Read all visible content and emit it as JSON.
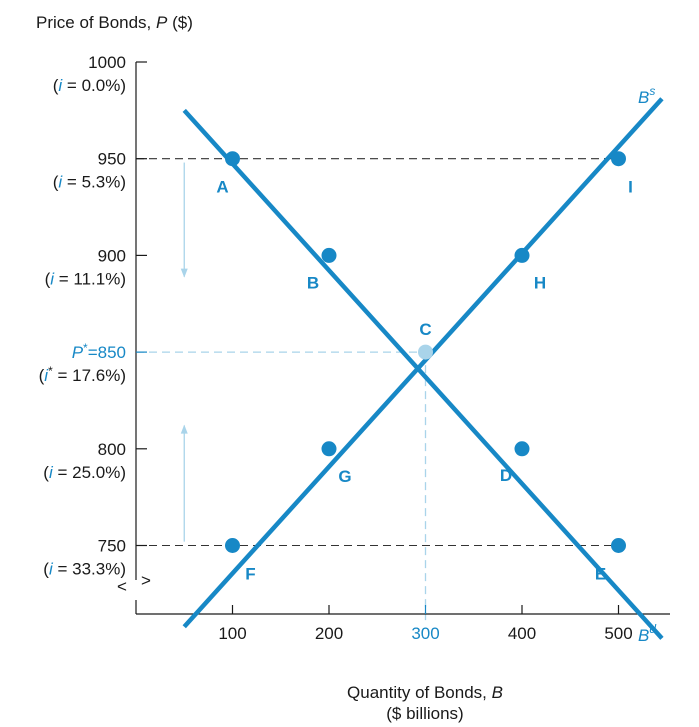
{
  "chart_data": {
    "type": "line",
    "ylabel": "Price of Bonds, P ($)",
    "xlabel_line1": "Quantity of Bonds, B",
    "xlabel_line2": "($ billions)",
    "xlim": [
      0,
      550
    ],
    "ylim": [
      700,
      1000
    ],
    "x_ticks": [
      {
        "label": "100",
        "value": 100,
        "highlight": false
      },
      {
        "label": "200",
        "value": 200,
        "highlight": false
      },
      {
        "label": "300",
        "value": 300,
        "highlight": true
      },
      {
        "label": "400",
        "value": 400,
        "highlight": false
      },
      {
        "label": "500",
        "value": 500,
        "highlight": false
      }
    ],
    "y_ticks": [
      {
        "value": 1000,
        "price": "1000",
        "rate_var": "i",
        "rate_val": " = 0.0%)",
        "highlight": false
      },
      {
        "value": 950,
        "price": "950",
        "rate_var": "i",
        "rate_val": " = 5.3%)",
        "highlight": false
      },
      {
        "value": 900,
        "price": "900",
        "rate_var": "i",
        "rate_val": " = 11.1%)",
        "highlight": false
      },
      {
        "value": 850,
        "price": "P*=850",
        "rate_var": "i*",
        "rate_val": " = 17.6%)",
        "highlight": true
      },
      {
        "value": 800,
        "price": "800",
        "rate_var": "i",
        "rate_val": " = 25.0%)",
        "highlight": false
      },
      {
        "value": 750,
        "price": "750",
        "rate_var": "i",
        "rate_val": " = 33.3%)",
        "highlight": false
      }
    ],
    "series": [
      {
        "name": "B^d",
        "label_main": "B",
        "label_sup": "d",
        "line_from": [
          50,
          975
        ],
        "line_to": [
          545,
          702
        ],
        "points": [
          {
            "label": "A",
            "x": 100,
            "y": 950
          },
          {
            "label": "B",
            "x": 200,
            "y": 900
          },
          {
            "label": "C",
            "x": 300,
            "y": 850
          },
          {
            "label": "D",
            "x": 400,
            "y": 800
          },
          {
            "label": "E",
            "x": 500,
            "y": 750
          }
        ]
      },
      {
        "name": "B^s",
        "label_main": "B",
        "label_sup": "s",
        "line_from": [
          50,
          708
        ],
        "line_to": [
          545,
          981
        ],
        "points": [
          {
            "label": "F",
            "x": 100,
            "y": 750
          },
          {
            "label": "G",
            "x": 200,
            "y": 800
          },
          {
            "label": "C",
            "x": 300,
            "y": 850
          },
          {
            "label": "H",
            "x": 400,
            "y": 900
          },
          {
            "label": "I",
            "x": 500,
            "y": 950
          }
        ]
      }
    ],
    "equilibrium": {
      "label": "C",
      "x": 300,
      "y": 850
    },
    "reference_lines": [
      {
        "y": 950,
        "x_end": 500
      },
      {
        "y": 750,
        "x_end": 500
      }
    ],
    "arrows": [
      {
        "direction": "down",
        "x": 50,
        "from_y": 948,
        "to_y": 889
      },
      {
        "direction": "up",
        "x": 50,
        "from_y": 752,
        "to_y": 812
      }
    ],
    "axis_break_glyphs": [
      "<",
      ">"
    ],
    "colors": {
      "curve": "#1788c6",
      "equilibrium": "#a9d4ea",
      "ink": "#1a1a1a"
    }
  }
}
